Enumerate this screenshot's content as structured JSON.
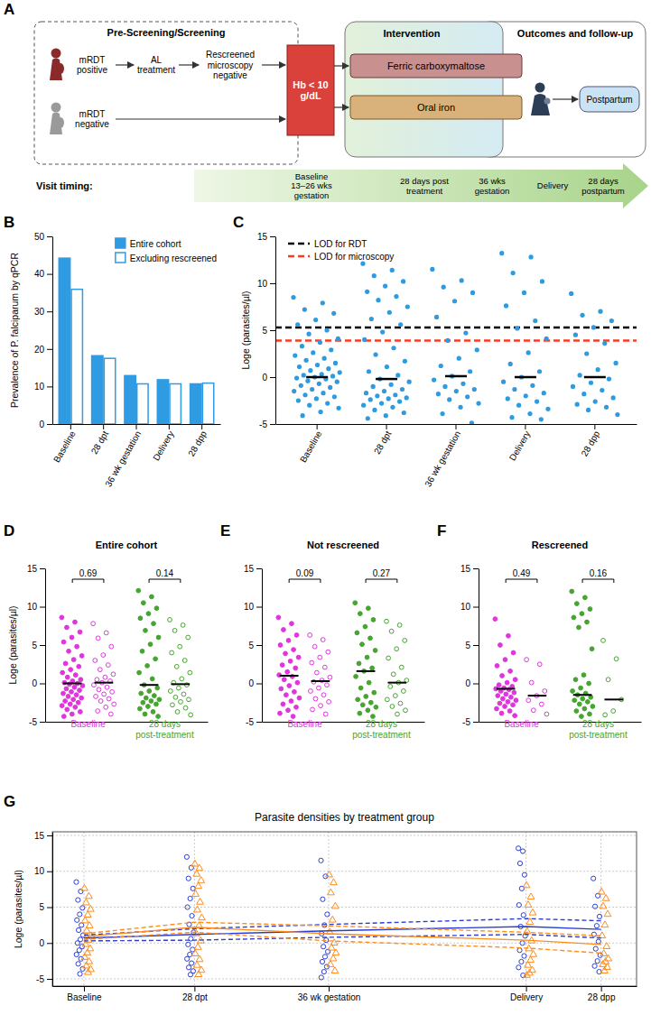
{
  "panel_a": {
    "panel_label": "A",
    "sections": [
      "Pre-Screening/Screening",
      "Intervention",
      "Outcomes and follow-up"
    ],
    "screening": [
      "mRDT positive",
      "AL treatment",
      "Rescreened microscopy negative",
      "mRDT negative"
    ],
    "criterion": "Hb < 10 g/dL",
    "arms": [
      "Ferric carboxymaltose",
      "Oral iron"
    ],
    "follow_up": "Postpartum",
    "timeline_title": "Visit timing:",
    "visits": [
      "Baseline 13–26 wks gestation",
      "28 days post treatment",
      "36 wks gestation",
      "Delivery",
      "28 days postpartum"
    ]
  },
  "chart_data": [
    {
      "type": "bar",
      "panel_label": "B",
      "y_label": "Prevalence of P. falciparum by qPCR",
      "categories": [
        "Baseline",
        "28 dpt",
        "36 wk gestation",
        "Delivery",
        "28 dpp"
      ],
      "series": [
        {
          "name": "Entire cohort",
          "color": "#2f9be3",
          "marker": "filled",
          "values": [
            44.2,
            18.2,
            12.9,
            11.8,
            10.7
          ]
        },
        {
          "name": "Excluding rescreened",
          "color": "#2f9be3",
          "marker": "open",
          "values": [
            35.9,
            17.5,
            10.7,
            10.7,
            10.9
          ]
        }
      ],
      "ylim": [
        0,
        50
      ],
      "yticks": [
        0,
        10,
        20,
        30,
        40,
        50
      ],
      "legend": "upper right"
    },
    {
      "type": "scatter",
      "panel_label": "C",
      "y_label": "Loge (parasites/µl)",
      "categories": [
        "Baseline",
        "28 dpt",
        "36 wk gestation",
        "Delivery",
        "28 dpp"
      ],
      "color": "#2e9be0",
      "values": [
        [
          8.5,
          7.9,
          7.2,
          6.8,
          6.1,
          5.6,
          5.0,
          4.6,
          4.1,
          3.7,
          3.3,
          2.9,
          2.6,
          2.3,
          2.0,
          1.8,
          1.5,
          1.3,
          1.1,
          0.9,
          0.7,
          0.5,
          0.3,
          0.2,
          0.1,
          0.0,
          -0.1,
          -0.2,
          -0.4,
          -0.5,
          -0.7,
          -0.9,
          -1.1,
          -1.3,
          -1.5,
          -1.7,
          -1.9,
          -2.1,
          -2.3,
          -2.5,
          -2.8,
          -3.0,
          -3.3,
          -3.7,
          -4.1
        ],
        [
          12.1,
          11.4,
          10.8,
          10.2,
          9.7,
          9.1,
          8.6,
          8.2,
          7.5,
          6.9,
          6.2,
          5.6,
          4.8,
          4.0,
          3.1,
          2.4,
          1.7,
          1.1,
          0.6,
          0.2,
          -0.2,
          -0.5,
          -0.8,
          -1.0,
          -1.3,
          -1.5,
          -1.7,
          -1.9,
          -2.0,
          -2.2,
          -2.3,
          -2.4,
          -2.6,
          -2.8,
          -3.0,
          -3.2,
          -3.5,
          -3.8,
          -4.1,
          -4.4
        ],
        [
          11.5,
          10.3,
          9.6,
          9.0,
          8.1,
          6.4,
          4.7,
          3.9,
          2.9,
          2.0,
          1.2,
          0.6,
          0.1,
          -0.3,
          -0.7,
          -1.0,
          -1.3,
          -1.5,
          -1.8,
          -2.1,
          -2.4,
          -2.8,
          -3.2,
          -3.9,
          -4.9
        ],
        [
          13.2,
          12.8,
          11.1,
          10.2,
          9.0,
          7.6,
          6.0,
          5.2,
          4.1,
          2.6,
          1.4,
          0.6,
          0.0,
          -0.5,
          -0.9,
          -1.3,
          -1.7,
          -2.0,
          -2.3,
          -2.6,
          -3.0,
          -3.4,
          -3.9,
          -4.3,
          -4.5
        ],
        [
          8.9,
          7.0,
          6.6,
          6.0,
          5.3,
          4.5,
          3.6,
          2.5,
          1.5,
          0.8,
          0.2,
          -0.2,
          -0.6,
          -1.0,
          -1.4,
          -1.8,
          -2.2,
          -2.6,
          -2.9,
          -3.2,
          -3.5,
          -4.0
        ]
      ],
      "medians": [
        0.0,
        -0.2,
        0.1,
        0.0,
        0.0
      ],
      "reference_lines": [
        {
          "name": "LOD for RDT",
          "value": 5.3,
          "color": "#000000",
          "line_style": "dashed"
        },
        {
          "name": "LOD for microscopy",
          "value": 3.9,
          "color": "#ff3b1f",
          "line_style": "dashed"
        }
      ],
      "ylim": [
        -5,
        15
      ],
      "yticks": [
        -5,
        0,
        5,
        10,
        15
      ],
      "legend": "upper left"
    },
    {
      "type": "scatter",
      "panel_label": "D",
      "title": "Entire cohort",
      "y_label": "Loge (parasites/µl)",
      "categories": [
        "Baseline",
        "28 days post-treatment"
      ],
      "colors": [
        "#e035dd",
        "#45a52f"
      ],
      "series": [
        {
          "marker": "filled",
          "values": [
            [
              8.6,
              8.0,
              7.3,
              6.7,
              6.0,
              5.4,
              4.8,
              4.2,
              3.6,
              3.1,
              2.6,
              2.2,
              1.8,
              1.4,
              1.1,
              0.8,
              0.5,
              0.3,
              0.1,
              0.0,
              -0.1,
              -0.3,
              -0.5,
              -0.7,
              -0.9,
              -1.1,
              -1.3,
              -1.5,
              -1.7,
              -1.9,
              -2.1,
              -2.3,
              -2.5,
              -2.7,
              -2.9,
              -3.1,
              -3.4,
              -3.7,
              -4.0,
              -4.3
            ],
            [
              12.1,
              11.3,
              10.5,
              9.8,
              9.1,
              8.5,
              7.8,
              6.9,
              6.0,
              5.1,
              4.2,
              3.2,
              2.3,
              1.4,
              0.6,
              -0.2,
              -0.6,
              -1.0,
              -1.3,
              -1.6,
              -1.9,
              -2.1,
              -2.3,
              -2.5,
              -2.7,
              -3.0,
              -3.3,
              -3.7,
              -4.0,
              -4.3
            ]
          ],
          "medians": [
            0.0,
            -0.2
          ]
        },
        {
          "marker": "open",
          "values": [
            [
              7.8,
              6.6,
              5.9,
              4.8,
              3.7,
              3.0,
              2.4,
              1.8,
              1.2,
              0.8,
              0.5,
              0.3,
              0.1,
              -0.2,
              -0.5,
              -0.8,
              -1.1,
              -1.4,
              -1.7,
              -2.0,
              -2.3,
              -2.7,
              -3.1,
              -3.6,
              -4.0
            ],
            [
              8.3,
              7.6,
              6.9,
              6.0,
              4.8,
              4.0,
              3.0,
              2.2,
              1.4,
              0.6,
              0.1,
              -0.2,
              -0.6,
              -1.0,
              -1.4,
              -1.8,
              -2.1,
              -2.4,
              -2.8,
              -3.2,
              -3.7,
              -4.1
            ]
          ],
          "medians": [
            0.1,
            -0.1
          ]
        }
      ],
      "p_values": [
        0.69,
        0.14
      ],
      "ylim": [
        -5,
        15
      ],
      "yticks": [
        -5,
        0,
        5,
        10,
        15
      ]
    },
    {
      "type": "scatter",
      "panel_label": "E",
      "title": "Not rescreened",
      "categories": [
        "Baseline",
        "28 days post-treatment"
      ],
      "colors": [
        "#e035dd",
        "#45a52f"
      ],
      "series": [
        {
          "marker": "filled",
          "values": [
            [
              8.6,
              7.8,
              7.0,
              6.3,
              5.6,
              5.0,
              4.4,
              3.9,
              3.4,
              2.9,
              2.4,
              2.0,
              1.5,
              1.1,
              0.9,
              0.5,
              0.1,
              -0.3,
              -0.7,
              -1.1,
              -1.5,
              -1.9,
              -2.3,
              -2.7,
              -3.1,
              -3.5,
              -3.9,
              -4.3
            ],
            [
              10.5,
              9.8,
              9.1,
              8.3,
              7.4,
              6.6,
              5.9,
              5.1,
              4.3,
              3.4,
              2.6,
              2.0,
              1.6,
              0.9,
              0.1,
              -0.6,
              -1.2,
              -1.7,
              -2.1,
              -2.5,
              -2.8,
              -3.1,
              -3.5,
              -3.9,
              -4.3
            ]
          ],
          "medians": [
            1.0,
            1.6
          ]
        },
        {
          "marker": "open",
          "values": [
            [
              6.3,
              5.7,
              4.8,
              4.1,
              3.4,
              2.7,
              2.1,
              1.4,
              0.8,
              0.4,
              0.2,
              -0.2,
              -0.6,
              -1.0,
              -1.5,
              -2.0,
              -2.4,
              -2.9,
              -3.4,
              -4.0
            ],
            [
              8.1,
              7.6,
              6.8,
              5.6,
              4.5,
              3.3,
              2.1,
              1.2,
              0.4,
              0.1,
              -0.4,
              -1.0,
              -1.6,
              -2.1,
              -2.6,
              -3.0,
              -3.5,
              -4.0
            ]
          ],
          "medians": [
            0.3,
            0.1
          ]
        }
      ],
      "p_values": [
        0.09,
        0.27
      ],
      "ylim": [
        -5,
        15
      ],
      "yticks": [
        -5,
        0,
        5,
        10,
        15
      ]
    },
    {
      "type": "scatter",
      "panel_label": "F",
      "title": "Rescreened",
      "categories": [
        "Baseline",
        "28 days post-treatment"
      ],
      "colors": [
        "#e035dd",
        "#45a52f"
      ],
      "series": [
        {
          "marker": "filled",
          "values": [
            [
              8.4,
              6.2,
              5.0,
              4.0,
              3.1,
              2.3,
              1.6,
              1.0,
              0.5,
              0.1,
              -0.2,
              -0.4,
              -0.6,
              -0.7,
              -0.8,
              -1.0,
              -1.2,
              -1.4,
              -1.6,
              -1.8,
              -2.0,
              -2.2,
              -2.4,
              -2.6,
              -2.8,
              -3.0,
              -3.3,
              -3.6,
              -3.9,
              -4.2
            ],
            [
              12.0,
              11.2,
              10.4,
              9.7,
              9.1,
              8.6,
              8.0,
              7.3,
              4.5,
              1.1,
              0.5,
              0.0,
              -0.6,
              -1.0,
              -1.3,
              -1.5,
              -1.8,
              -2.0,
              -2.2,
              -2.4,
              -2.7,
              -3.0,
              -3.3,
              -3.6,
              -4.0,
              -4.3
            ]
          ],
          "medians": [
            -0.7,
            -1.5
          ]
        },
        {
          "marker": "open",
          "values": [
            [
              3.1,
              2.5,
              0.1,
              -1.0,
              -1.6,
              -2.2,
              -2.7,
              -3.5,
              -4.0
            ],
            [
              5.6,
              3.2,
              0.5,
              -2.1,
              -3.6,
              -4.1
            ]
          ],
          "medians": [
            -1.6,
            -2.1
          ]
        }
      ],
      "p_values": [
        0.49,
        0.16
      ],
      "ylim": [
        -5,
        15
      ],
      "yticks": [
        -5,
        0,
        5,
        10,
        15
      ]
    },
    {
      "type": "scatter",
      "panel_label": "G",
      "title": "Parasite densities by treatment group",
      "y_label": "Loge (parasites/µl)",
      "x": [
        0,
        28,
        62,
        112,
        131
      ],
      "xlim": [
        -8,
        140
      ],
      "xticks": [
        {
          "value": 0,
          "label": "Baseline"
        },
        {
          "value": 28,
          "label": "28 dpt"
        },
        {
          "value": 62,
          "label": "36 wk gestation"
        },
        {
          "value": 112,
          "label": "Delivery"
        },
        {
          "value": 131,
          "label": "28 dpp"
        }
      ],
      "ylim": [
        -6,
        15.5
      ],
      "yticks": [
        -5,
        0,
        5,
        10,
        15
      ],
      "grid": true,
      "series": [
        {
          "type": "scatter",
          "color": "#2b3fd6",
          "marker": "circle",
          "values": [
            [
              8.5,
              7.2,
              6.0,
              4.9,
              4.0,
              3.2,
              2.5,
              1.8,
              1.1,
              0.5,
              0.0,
              -0.5,
              -1.0,
              -1.6,
              -2.2,
              -2.9,
              -3.6,
              -4.3
            ],
            [
              12.0,
              10.5,
              9.0,
              7.6,
              6.2,
              5.0,
              3.8,
              2.6,
              1.5,
              0.6,
              -0.2,
              -0.9,
              -1.6,
              -2.2,
              -2.8,
              -3.4,
              -3.9,
              -4.4
            ],
            [
              11.5,
              9.3,
              6.1,
              4.0,
              2.5,
              1.3,
              0.4,
              -0.5,
              -1.2,
              -1.9,
              -2.6,
              -3.3,
              -4.0,
              -4.8
            ],
            [
              13.2,
              12.8,
              11.1,
              9.5,
              7.6,
              5.3,
              3.9,
              2.3,
              1.0,
              0.0,
              -1.0,
              -1.8,
              -2.6,
              -3.4,
              -4.5
            ],
            [
              9.0,
              6.6,
              5.1,
              3.7,
              2.4,
              1.2,
              0.2,
              -0.8,
              -1.7,
              -2.5,
              -3.2,
              -4.0
            ]
          ]
        },
        {
          "type": "scatter",
          "color": "#ff8c1a",
          "marker": "triangle",
          "values": [
            [
              7.6,
              6.5,
              5.6,
              4.7,
              3.9,
              3.1,
              2.4,
              1.7,
              1.0,
              0.4,
              -0.2,
              -0.8,
              -1.4,
              -2.0,
              -2.6,
              -3.2,
              -3.7,
              -4.1
            ],
            [
              11.0,
              10.4,
              9.6,
              8.7,
              7.9,
              6.8,
              5.7,
              4.6,
              3.5,
              2.4,
              1.3,
              0.3,
              -0.6,
              -1.5,
              -2.3,
              -3.1,
              -3.8,
              -4.4
            ],
            [
              9.5,
              8.4,
              7.0,
              5.1,
              3.2,
              1.5,
              0.0,
              -0.7,
              -1.4,
              -2.2,
              -3.0,
              -3.9
            ],
            [
              8.0,
              6.4,
              5.3,
              4.2,
              2.9,
              1.6,
              0.3,
              -0.8,
              -1.6,
              -2.4,
              -3.1,
              -3.8,
              -4.2,
              -4.5
            ],
            [
              7.1,
              6.2,
              5.1,
              4.0,
              2.5,
              1.0,
              -0.5,
              -1.5,
              -2.2,
              -2.6,
              -3.0,
              -3.4,
              -3.9
            ]
          ]
        },
        {
          "type": "line",
          "color": "#2b3fd6",
          "line_style": "solid",
          "values": [
            0.7,
            1.2,
            1.7,
            2.3,
            1.9
          ]
        },
        {
          "type": "line",
          "color": "#2b3fd6",
          "line_style": "dashed",
          "values": [
            1.1,
            2.0,
            2.6,
            3.4,
            3.1
          ]
        },
        {
          "type": "line",
          "color": "#2b3fd6",
          "line_style": "dashed",
          "values": [
            0.3,
            0.4,
            0.8,
            1.2,
            0.7
          ]
        },
        {
          "type": "line",
          "color": "#ff8c1a",
          "line_style": "solid",
          "values": [
            0.9,
            2.2,
            1.3,
            0.4,
            -0.2
          ]
        },
        {
          "type": "line",
          "color": "#ff8c1a",
          "line_style": "dashed",
          "values": [
            1.3,
            2.9,
            2.4,
            1.5,
            1.0
          ]
        },
        {
          "type": "line",
          "color": "#ff8c1a",
          "line_style": "dashed",
          "values": [
            0.5,
            1.5,
            0.3,
            -0.7,
            -1.4
          ]
        }
      ]
    }
  ]
}
